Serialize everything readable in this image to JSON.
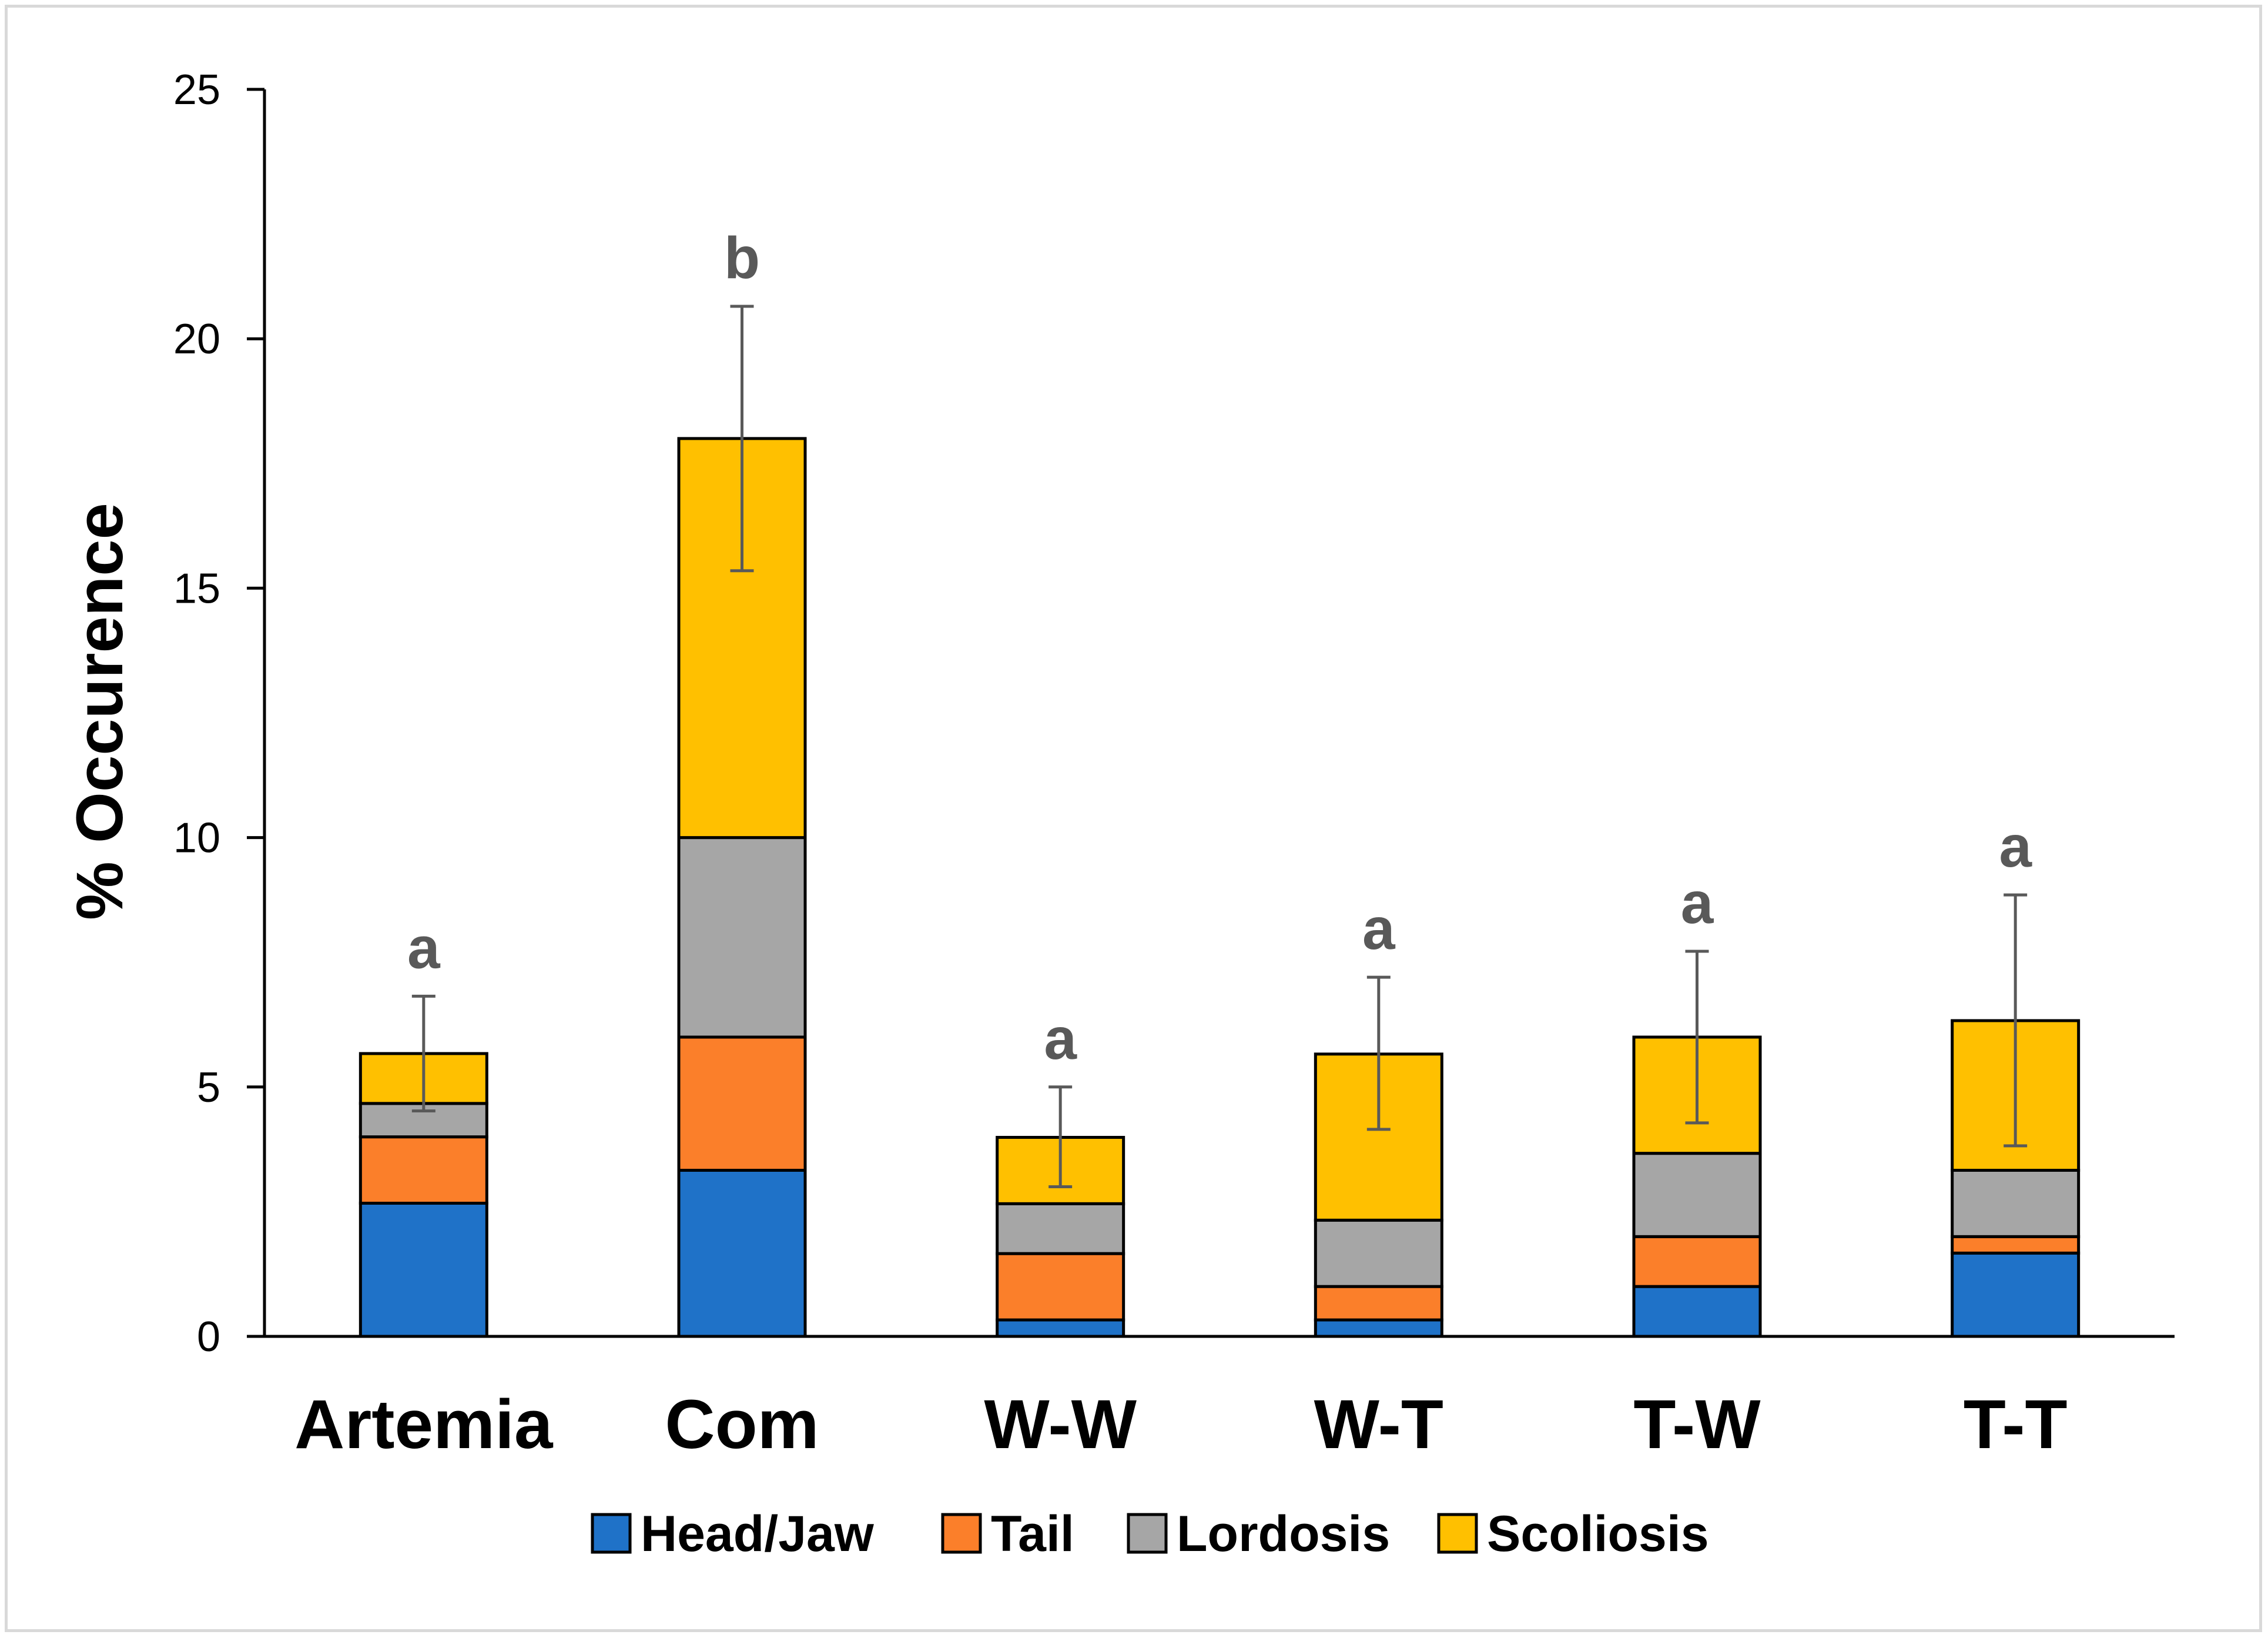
{
  "chart_data": {
    "type": "bar",
    "stacked": true,
    "title": "",
    "xlabel": "",
    "ylabel": "% Occurence",
    "ylim": [
      0,
      25
    ],
    "yticks": [
      0,
      5,
      10,
      15,
      20,
      25
    ],
    "grid": false,
    "legend_position": "bottom",
    "categories": [
      "Artemia",
      "Com",
      "W-W",
      "W-T",
      "T-W",
      "T-T"
    ],
    "series": [
      {
        "name": "Head/Jaw",
        "color": "#1f72c8",
        "values": [
          2.67,
          3.33,
          0.33,
          0.33,
          1.0,
          1.67
        ]
      },
      {
        "name": "Tail",
        "color": "#fb7f2a",
        "values": [
          1.33,
          2.67,
          1.33,
          0.67,
          1.0,
          0.33
        ]
      },
      {
        "name": "Lordosis",
        "color": "#a6a6a6",
        "values": [
          0.67,
          4.0,
          1.0,
          1.33,
          1.67,
          1.33
        ]
      },
      {
        "name": "Scoliosis",
        "color": "#ffc000",
        "values": [
          1.0,
          8.0,
          1.33,
          3.33,
          2.33,
          3.0
        ]
      }
    ],
    "totals": [
      5.67,
      18.0,
      4.0,
      5.67,
      6.0,
      6.33
    ],
    "error_bars": [
      {
        "low": 4.52,
        "high": 6.82
      },
      {
        "low": 15.35,
        "high": 20.65
      },
      {
        "low": 3.0,
        "high": 5.0
      },
      {
        "low": 4.15,
        "high": 7.2
      },
      {
        "low": 4.28,
        "high": 7.72
      },
      {
        "low": 3.82,
        "high": 8.85
      }
    ],
    "significance_labels": [
      "a",
      "b",
      "a",
      "a",
      "a",
      "a"
    ]
  }
}
